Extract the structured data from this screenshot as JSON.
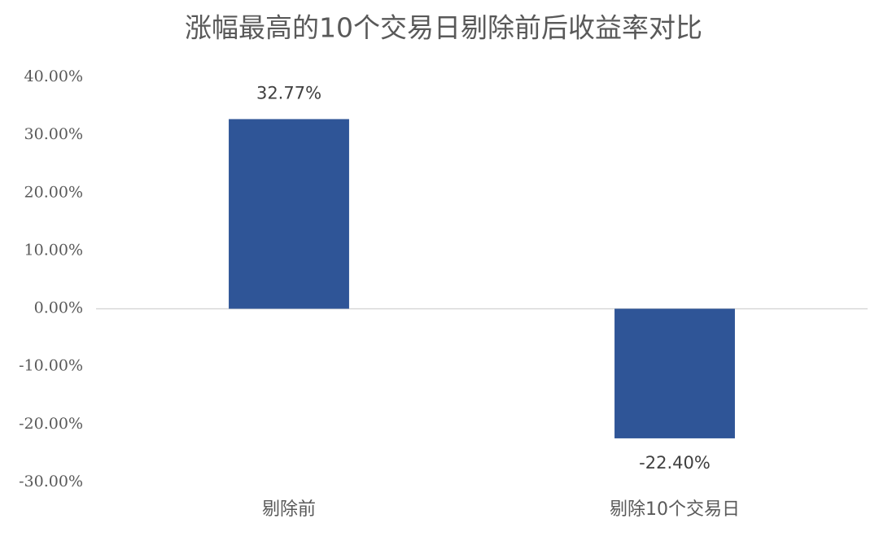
{
  "chart_data": {
    "type": "bar",
    "title": "涨幅最高的10个交易日剔除前后收益率对比",
    "categories": [
      "剔除前",
      "剔除10个交易日"
    ],
    "values": [
      32.77,
      -22.4
    ],
    "value_labels": [
      "32.77%",
      "-22.40%"
    ],
    "color": "#2f5597",
    "ylim": [
      -30,
      40
    ],
    "yticks": [
      {
        "value": 40,
        "label": "40.00%"
      },
      {
        "value": 30,
        "label": "30.00%"
      },
      {
        "value": 20,
        "label": "20.00%"
      },
      {
        "value": 10,
        "label": "10.00%"
      },
      {
        "value": 0,
        "label": "0.00%"
      },
      {
        "value": -10,
        "label": "-10.00%"
      },
      {
        "value": -20,
        "label": "-20.00%"
      },
      {
        "value": -30,
        "label": "-30.00%"
      }
    ],
    "grid": false
  }
}
